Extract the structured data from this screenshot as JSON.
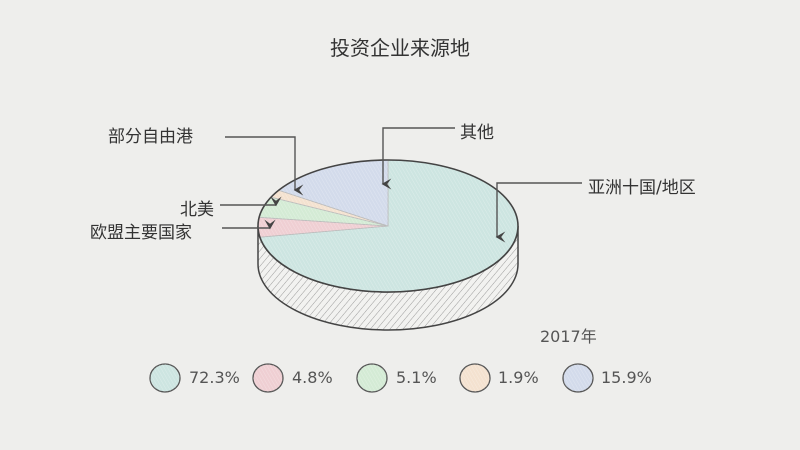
{
  "chart_data": {
    "type": "pie",
    "title": "投资企业来源地",
    "subtitle": "2017年",
    "style": "3d-sketch",
    "start_angle": "12 o'clock",
    "direction": "clockwise",
    "series": [
      {
        "name": "亚洲十国/地区",
        "value": 72.3,
        "label": "72.3%",
        "color": "#cde5e1"
      },
      {
        "name": "欧盟主要国家",
        "value": 4.8,
        "label": "4.8%",
        "color": "#efcfd3"
      },
      {
        "name": "北美",
        "value": 5.1,
        "label": "5.1%",
        "color": "#d4ebd5"
      },
      {
        "name": "部分自由港",
        "value": 1.9,
        "label": "1.9%",
        "color": "#f4e2d0"
      },
      {
        "name": "其他",
        "value": 15.9,
        "label": "15.9%",
        "color": "#d3dbeb"
      }
    ],
    "legend": "bottom"
  }
}
